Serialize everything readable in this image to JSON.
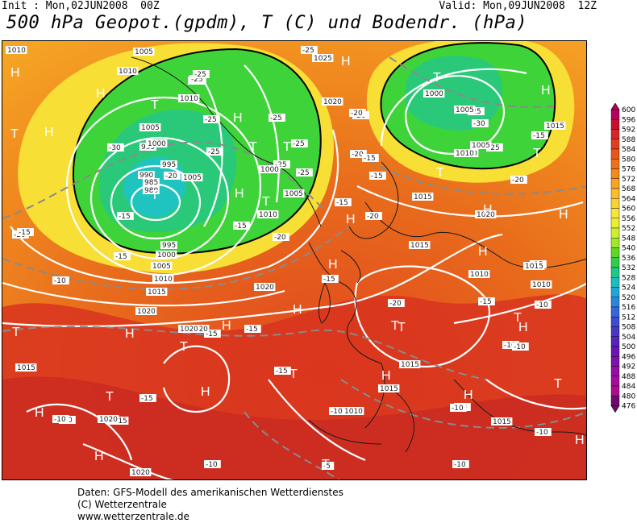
{
  "header": {
    "init_label": "Init : Mon,02JUN2008  00Z",
    "valid_label": "Valid: Mon,09JUN2008  12Z",
    "title": "500 hPa Geopot.(gpdm), T (C) und Bodendr. (hPa)"
  },
  "colorbar": {
    "values": [
      "600",
      "596",
      "592",
      "588",
      "584",
      "580",
      "576",
      "572",
      "568",
      "564",
      "560",
      "556",
      "552",
      "548",
      "540",
      "536",
      "532",
      "528",
      "524",
      "520",
      "516",
      "512",
      "508",
      "504",
      "500",
      "496",
      "492",
      "488",
      "484",
      "480",
      "476"
    ],
    "colors": [
      "#b5005b",
      "#c8102e",
      "#d7262a",
      "#e23d1f",
      "#ea5619",
      "#f0701a",
      "#f5891e",
      "#f9a324",
      "#fbbd2b",
      "#fbd233",
      "#f7e53a",
      "#e9ef33",
      "#cdf02c",
      "#9fe727",
      "#5fd927",
      "#2fcf4a",
      "#1ec78a",
      "#19bfc0",
      "#1fa7dc",
      "#2a85de",
      "#3666db",
      "#3e4bd4",
      "#4836c9",
      "#5524bd",
      "#6a14b4",
      "#8010ad",
      "#950da6",
      "#a50b9e",
      "#b00a90",
      "#6e0a6e"
    ]
  },
  "map": {
    "temperature_labels": [
      "-25",
      "-25",
      "-25",
      "-25",
      "-25",
      "-25",
      "-25",
      "-25",
      "-25",
      "-25",
      "-25",
      "-25",
      "-30",
      "-30",
      "-20",
      "-20",
      "-20",
      "-20",
      "-20",
      "-20",
      "-20",
      "-20",
      "-20",
      "-15",
      "-15",
      "-15",
      "-15",
      "-15",
      "-15",
      "-15",
      "-15",
      "-15",
      "-15",
      "-15",
      "-15",
      "-15",
      "-15",
      "-15",
      "-10",
      "-10",
      "-10",
      "-10",
      "-10",
      "-10",
      "-10",
      "-10",
      "-10",
      "-10",
      "-10",
      "-10",
      "-5"
    ],
    "pressure_labels": [
      "1010",
      "1005",
      "1010",
      "1010",
      "1005",
      "995",
      "1000",
      "1000",
      "1005",
      "1010",
      "985",
      "990",
      "995",
      "980",
      "995",
      "1000",
      "1005",
      "1010",
      "1015",
      "1020",
      "1020",
      "1015",
      "1020",
      "1020",
      "1020",
      "1010",
      "1015",
      "1010",
      "1015",
      "1015",
      "1015",
      "1010",
      "1005",
      "1000",
      "1005",
      "1005",
      "1010",
      "1015",
      "1015",
      "1010",
      "1015",
      "1015",
      "1020",
      "1020",
      "1020",
      "1025"
    ],
    "high_label": "H",
    "low_label": "T"
  },
  "footer": {
    "line1": "Daten: GFS-Modell des amerikanischen Wetterdienstes",
    "line2": "(C) Wetterzentrale",
    "line3": "www.wetterzentrale.de"
  }
}
